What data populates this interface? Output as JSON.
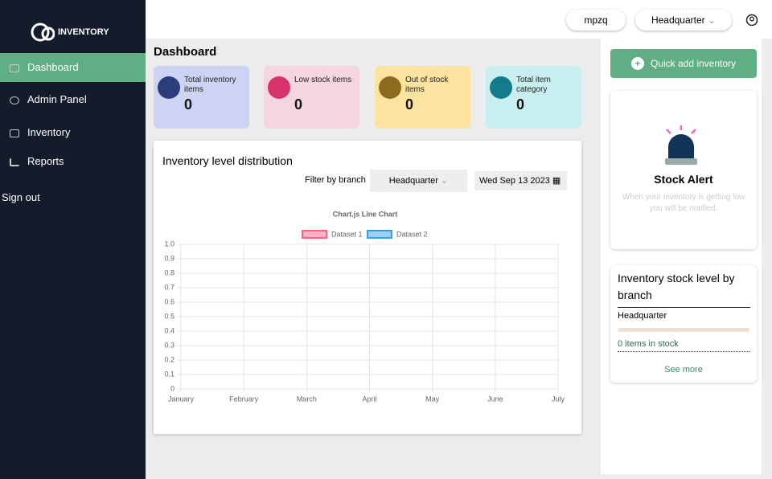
{
  "sidebar": {
    "logo": "INVENTORY",
    "nav": [
      "Dashboard",
      "Admin Panel",
      "Inventory",
      "Reports"
    ],
    "sign_out": "Sign out"
  },
  "topbar": {
    "user": "mpzq",
    "branch": "Headquarter"
  },
  "dashboard": {
    "title": "Dashboard",
    "cards": [
      {
        "label": "Total inventory items",
        "value": 0
      },
      {
        "label": "Low stock items",
        "value": 0
      },
      {
        "label": "Out of stock items",
        "value": 0
      },
      {
        "label": "Total item category",
        "value": 0
      }
    ]
  },
  "chart_panel": {
    "title": "Inventory level distribution",
    "filter_label": "Filter by branch",
    "branch": "Headquarter",
    "date": "Wed Sep 13 2023"
  },
  "chart_data": {
    "type": "line",
    "title": "Chart.js Line Chart",
    "categories": [
      "January",
      "February",
      "March",
      "April",
      "May",
      "June",
      "July"
    ],
    "series": [
      {
        "name": "Dataset 1",
        "color": "#ff6384",
        "values": [
          null,
          null,
          null,
          null,
          null,
          null,
          null
        ]
      },
      {
        "name": "Dataset 2",
        "color": "#36a2eb",
        "values": [
          null,
          null,
          null,
          null,
          null,
          null,
          null
        ]
      }
    ],
    "ylim": [
      0,
      1
    ],
    "yticks": [
      0,
      0.1,
      0.2,
      0.3,
      0.4,
      0.5,
      0.6,
      0.7,
      0.8,
      0.9,
      {
        "value": 1,
        "label": "1.0"
      }
    ],
    "grid": true
  },
  "quick_add": "Quick add inventory",
  "stock_alert": {
    "title": "Stock Alert",
    "text": "When your inventory is getting low you will be notified."
  },
  "stock_level": {
    "title": "Inventory stock level by branch",
    "branch": "Headquarter",
    "items": "0 items in stock",
    "link": "See more"
  }
}
